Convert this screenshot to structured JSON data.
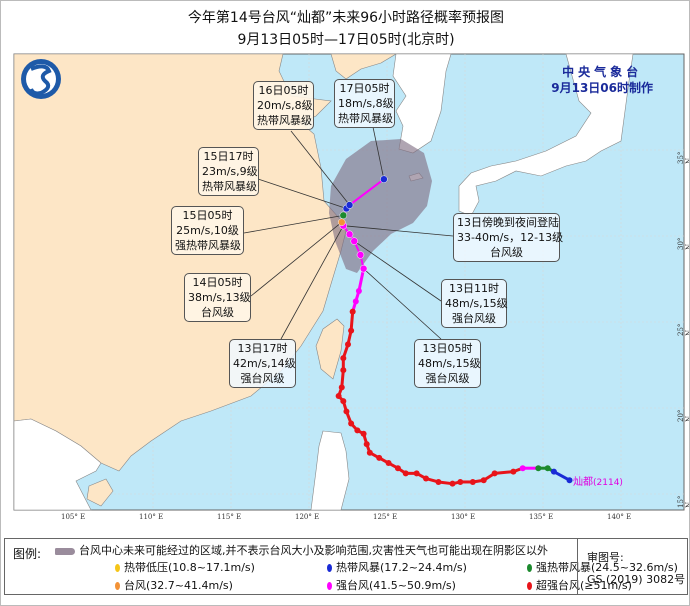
{
  "title": {
    "line1": "今年第14号台风“灿都”未来96小时路径概率预报图",
    "line2": "9月13日05时—17日05时(北京时)"
  },
  "issuer": {
    "name": "中央气象台",
    "issued": "9月13日06时制作"
  },
  "storm": {
    "name": "灿都",
    "code": "(2114)"
  },
  "axes": {
    "lon_ticks": [
      "105° E",
      "110° E",
      "115° E",
      "120° E",
      "125° E",
      "130° E",
      "135° E",
      "140° E"
    ],
    "lat_ticks": [
      "35° N",
      "30° N",
      "25° N",
      "20° N",
      "15° N"
    ]
  },
  "colors": {
    "td": "#f5c518",
    "ts": "#1a2bd6",
    "sts": "#1c8a2e",
    "ty": "#f39237",
    "sty": "#ff00ff",
    "super": "#e8141a",
    "cone": "#8a7a8c",
    "sea": "#bfe8f8",
    "china": "#fde6c6",
    "other_land": "#ffffff",
    "issuer": "#1a2a9a"
  },
  "track_past": [
    {
      "lon": 136.7,
      "lat": 15.8,
      "cat": "ts"
    },
    {
      "lon": 135.7,
      "lat": 16.3,
      "cat": "ts"
    },
    {
      "lon": 135.3,
      "lat": 16.5,
      "cat": "sts"
    },
    {
      "lon": 134.7,
      "lat": 16.5,
      "cat": "sts"
    },
    {
      "lon": 133.7,
      "lat": 16.5,
      "cat": "sty"
    },
    {
      "lon": 133.1,
      "lat": 16.3,
      "cat": "super"
    },
    {
      "lon": 131.9,
      "lat": 16.2,
      "cat": "super"
    },
    {
      "lon": 131.2,
      "lat": 15.8,
      "cat": "super"
    },
    {
      "lon": 130.5,
      "lat": 15.7,
      "cat": "super"
    },
    {
      "lon": 129.7,
      "lat": 15.7,
      "cat": "super"
    },
    {
      "lon": 129.2,
      "lat": 15.6,
      "cat": "super"
    },
    {
      "lon": 128.3,
      "lat": 15.7,
      "cat": "super"
    },
    {
      "lon": 127.5,
      "lat": 15.9,
      "cat": "super"
    },
    {
      "lon": 126.9,
      "lat": 16.2,
      "cat": "super"
    },
    {
      "lon": 126.2,
      "lat": 16.2,
      "cat": "super"
    },
    {
      "lon": 125.7,
      "lat": 16.5,
      "cat": "super"
    },
    {
      "lon": 125.1,
      "lat": 16.8,
      "cat": "super"
    },
    {
      "lon": 124.5,
      "lat": 17.1,
      "cat": "super"
    },
    {
      "lon": 123.9,
      "lat": 17.4,
      "cat": "super"
    },
    {
      "lon": 123.7,
      "lat": 17.9,
      "cat": "super"
    },
    {
      "lon": 123.5,
      "lat": 18.5,
      "cat": "super"
    },
    {
      "lon": 123.1,
      "lat": 18.7,
      "cat": "super"
    },
    {
      "lon": 122.7,
      "lat": 19.1,
      "cat": "super"
    },
    {
      "lon": 122.4,
      "lat": 19.8,
      "cat": "super"
    },
    {
      "lon": 122.2,
      "lat": 20.4,
      "cat": "super"
    },
    {
      "lon": 121.9,
      "lat": 20.7,
      "cat": "super"
    },
    {
      "lon": 122.1,
      "lat": 21.2,
      "cat": "super"
    },
    {
      "lon": 122.2,
      "lat": 22.2,
      "cat": "super"
    },
    {
      "lon": 122.2,
      "lat": 22.9,
      "cat": "super"
    },
    {
      "lon": 122.5,
      "lat": 23.7,
      "cat": "super"
    },
    {
      "lon": 122.7,
      "lat": 24.5,
      "cat": "super"
    },
    {
      "lon": 122.8,
      "lat": 25.6,
      "cat": "super"
    },
    {
      "lon": 123.0,
      "lat": 26.2,
      "cat": "sty"
    },
    {
      "lon": 123.2,
      "lat": 26.8,
      "cat": "sty"
    },
    {
      "lon": 123.5,
      "lat": 28.1,
      "cat": "sty"
    }
  ],
  "track_forecast": [
    {
      "lon": 123.5,
      "lat": 28.1,
      "cat": "sty"
    },
    {
      "lon": 123.3,
      "lat": 28.9,
      "cat": "sty"
    },
    {
      "lon": 122.9,
      "lat": 29.7,
      "cat": "sty"
    },
    {
      "lon": 122.6,
      "lat": 30.1,
      "cat": "sty"
    },
    {
      "lon": 122.2,
      "lat": 30.6,
      "cat": "sty"
    },
    {
      "lon": 122.1,
      "lat": 30.8,
      "cat": "ty"
    },
    {
      "lon": 122.2,
      "lat": 31.2,
      "cat": "sts"
    },
    {
      "lon": 122.4,
      "lat": 31.6,
      "cat": "ts"
    },
    {
      "lon": 122.6,
      "lat": 31.8,
      "cat": "ts"
    },
    {
      "lon": 124.8,
      "lat": 33.3,
      "cat": "ts"
    }
  ],
  "labels": [
    {
      "id": "f16-05",
      "time": "16日05时",
      "wind": "20m/s,8级",
      "grade": "热带风暴级",
      "lon": 122.6,
      "lat": 31.8
    },
    {
      "id": "f17-05",
      "time": "17日05时",
      "wind": "18m/s,8级",
      "grade": "热带风暴级",
      "lon": 124.8,
      "lat": 33.3
    },
    {
      "id": "f15-17",
      "time": "15日17时",
      "wind": "23m/s,9级",
      "grade": "热带风暴级",
      "lon": 122.4,
      "lat": 31.6
    },
    {
      "id": "f15-05",
      "time": "15日05时",
      "wind": "25m/s,10级",
      "grade": "强热带风暴级",
      "lon": 122.2,
      "lat": 31.2
    },
    {
      "id": "f14-05",
      "time": "14日05时",
      "wind": "38m/s,13级",
      "grade": "台风级",
      "lon": 122.1,
      "lat": 30.8
    },
    {
      "id": "f13-17",
      "time": "13日17时",
      "wind": "42m/s,14级",
      "grade": "强台风级",
      "lon": 122.2,
      "lat": 30.6
    },
    {
      "id": "landfall",
      "time": "13日傍晚到夜间登陆",
      "wind": "33-40m/s，12-13级",
      "grade": "台风级",
      "lon": 122.2,
      "lat": 30.6
    },
    {
      "id": "f13-11",
      "time": "13日11时",
      "wind": "48m/s,15级",
      "grade": "强台风级",
      "lon": 122.9,
      "lat": 29.7
    },
    {
      "id": "f13-05",
      "time": "13日05时",
      "wind": "48m/s,15级",
      "grade": "强台风级",
      "lon": 123.5,
      "lat": 28.1
    }
  ],
  "legend": {
    "title": "图例:",
    "cone": "台风中心未来可能经过的区域,并不表示台风大小及影响范围,灾害性天气也可能出现在阴影区以外",
    "items": [
      {
        "label": "热带低压(10.8~17.1m/s)",
        "cat": "td"
      },
      {
        "label": "热带风暴(17.2~24.4m/s)",
        "cat": "ts"
      },
      {
        "label": "强热带风暴(24.5~32.6m/s)",
        "cat": "sts"
      },
      {
        "label": "台风(32.7~41.4m/s)",
        "cat": "ty"
      },
      {
        "label": "强台风(41.5~50.9m/s)",
        "cat": "sty"
      },
      {
        "label": "超强台风(≥51m/s)",
        "cat": "super"
      }
    ],
    "review_label": "审图号:",
    "review_no": "GS (2019) 3082号"
  }
}
